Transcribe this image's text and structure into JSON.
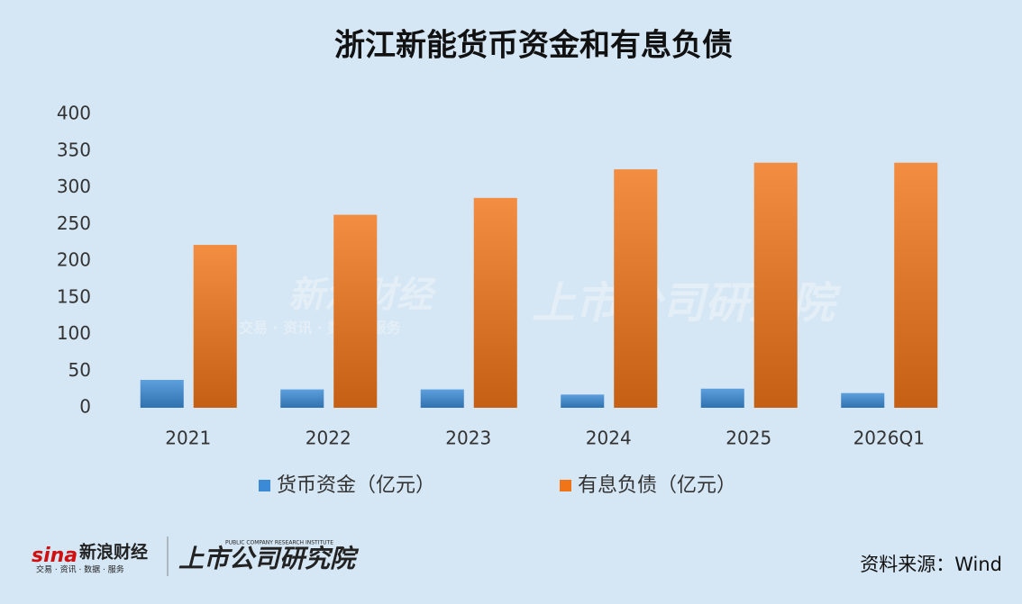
{
  "chart_data": {
    "type": "bar",
    "title": "浙江新能货币资金和有息负债",
    "categories": [
      "2021",
      "2022",
      "2023",
      "2024",
      "2025",
      "2026Q1"
    ],
    "series": [
      {
        "name": "货币资金（亿元）",
        "color": "#3a8ad6",
        "values": [
          38,
          25,
          25,
          18,
          26,
          20
        ]
      },
      {
        "name": "有息负债（亿元）",
        "color": "#f07418",
        "values": [
          222,
          263,
          286,
          325,
          334,
          334
        ]
      }
    ],
    "ylim": [
      0,
      400
    ],
    "yticks": [
      0,
      50,
      100,
      150,
      200,
      250,
      300,
      350,
      400
    ],
    "grid": false,
    "legend": "bottom"
  },
  "footer": {
    "brand": "新浪财经",
    "brand_tagline": "交易 · 资讯 · 数据 · 服务",
    "institute": "上市公司研究院",
    "institute_en": "PUBLIC COMPANY RESEARCH INSTITUTE",
    "source": "资料来源：Wind"
  }
}
